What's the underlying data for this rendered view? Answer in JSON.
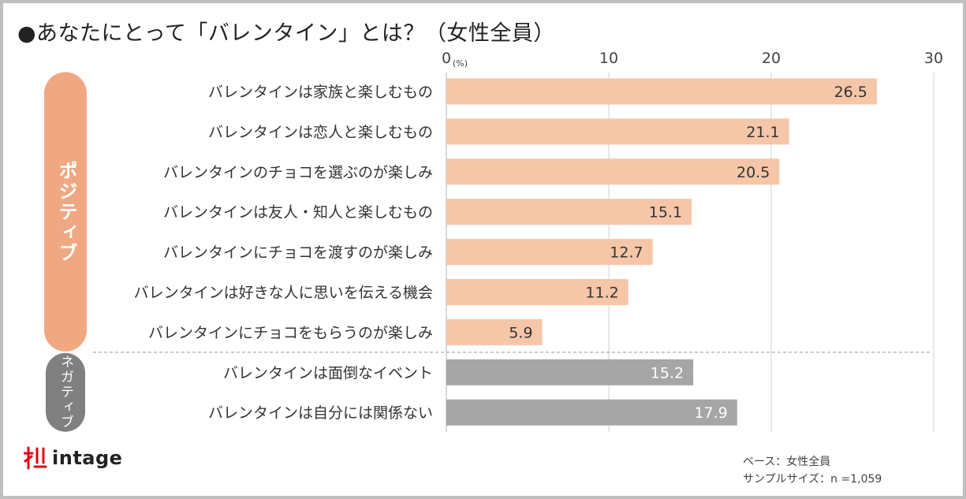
{
  "title": "●あなたにとって「バレンタイン」とは？（女性全員）",
  "chart_data": {
    "type": "bar",
    "orientation": "horizontal",
    "unit": "(%)",
    "xlim": [
      0,
      30
    ],
    "ticks": [
      0,
      10,
      20,
      30
    ],
    "groups": [
      {
        "name": "ポジティブ",
        "color": "#f5c6a8",
        "badge_color": "#f0a883"
      },
      {
        "name": "ネガティブ",
        "color": "#a6a6a6",
        "badge_color": "#808080"
      }
    ],
    "series": [
      {
        "group": "ポジティブ",
        "categories": [
          "バレンタインは家族と楽しむもの",
          "バレンタインは恋人と楽しむもの",
          "バレンタインのチョコを選ぶのが楽しみ",
          "バレンタインは友人・知人と楽しむもの",
          "バレンタインにチョコを渡すのが楽しみ",
          "バレンタインは好きな人に思いを伝える機会",
          "バレンタインにチョコをもらうのが楽しみ"
        ],
        "values": [
          26.5,
          21.1,
          20.5,
          15.1,
          12.7,
          11.2,
          5.9
        ],
        "labels": [
          "26.5",
          "21.1",
          "20.5",
          "15.1",
          "12.7",
          "11.2",
          "5.9"
        ]
      },
      {
        "group": "ネガティブ",
        "categories": [
          "バレンタインは面倒なイベント",
          "バレンタインは自分には関係ない"
        ],
        "values": [
          15.2,
          17.9
        ],
        "labels": [
          "15.2",
          "17.9"
        ]
      }
    ]
  },
  "logo": {
    "text": "intage",
    "icon": "intage-logo-icon",
    "color": "#e60012"
  },
  "footnote": {
    "base": "ベース：女性全員",
    "sample": "サンプルサイズ：n =1,059"
  }
}
